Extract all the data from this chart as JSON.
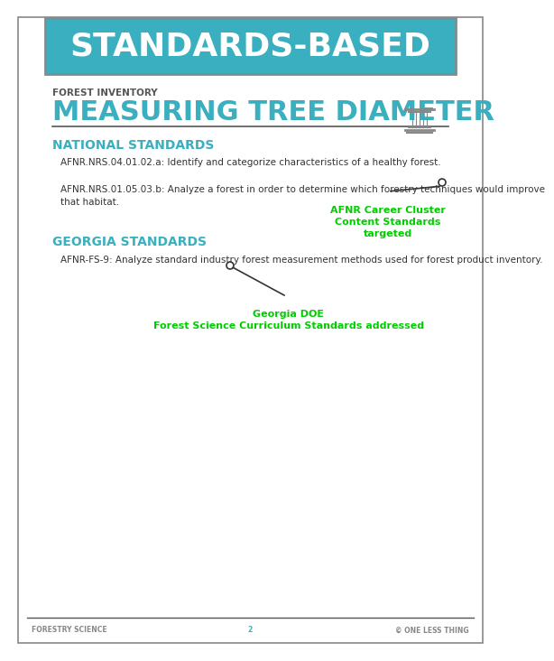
{
  "bg_color": "#ffffff",
  "border_color": "#888888",
  "header_bg": "#3aafbf",
  "header_text": "STANDARDS-BASED",
  "header_text_color": "#ffffff",
  "header_outline_color": "#7a8f8f",
  "subtitle_label": "FOREST INVENTORY",
  "subtitle_label_color": "#555555",
  "title": "MEASURING TREE DIAMETER",
  "title_color": "#3aafbf",
  "section1_heading": "NATIONAL STANDARDS",
  "section1_heading_color": "#3aafbf",
  "section1_text1": "AFNR.NRS.04.01.02.a: Identify and categorize characteristics of a healthy forest.",
  "section1_text2": "AFNR.NRS.01.05.03.b: Analyze a forest in order to determine which forestry techniques would improve\nthat habitat.",
  "section2_heading": "GEORGIA STANDARDS",
  "section2_heading_color": "#3aafbf",
  "section2_text1": "AFNR-FS-9: Analyze standard industry forest measurement methods used for forest product inventory.",
  "annotation1_text": "AFNR Career Cluster\nContent Standards\ntargeted",
  "annotation1_color": "#00cc00",
  "annotation2_text": "Georgia DOE\nForest Science Curriculum Standards addressed",
  "annotation2_color": "#00cc00",
  "footer_left": "FORESTRY SCIENCE",
  "footer_center": "2",
  "footer_right": "© ONE LESS THING",
  "footer_color": "#888888",
  "footer_center_color": "#3aafbf",
  "body_text_color": "#333333",
  "divider_color": "#555555"
}
